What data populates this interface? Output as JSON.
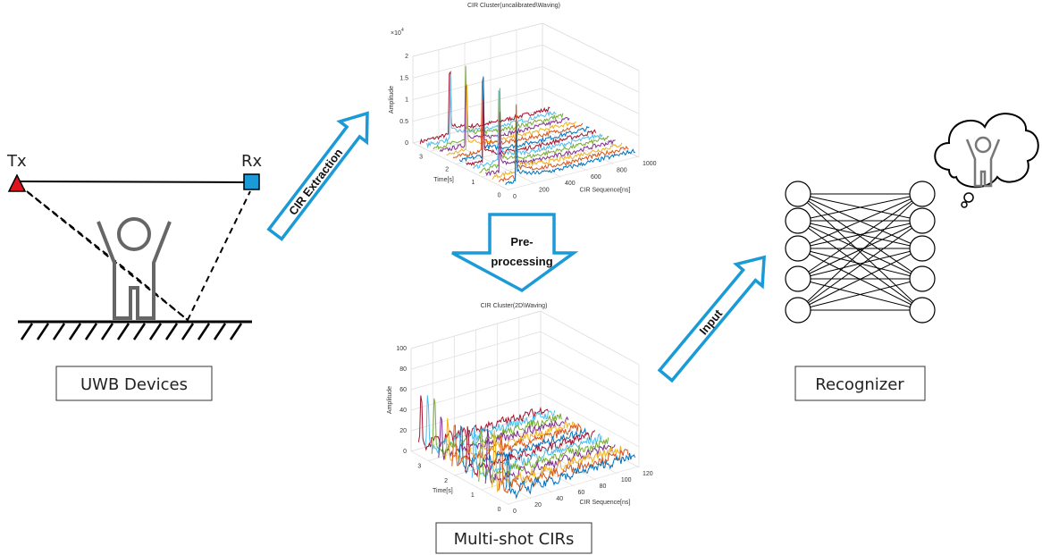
{
  "devices": {
    "tx": "Tx",
    "rx": "Rx",
    "label": "UWB Devices"
  },
  "arrows": {
    "extraction": "CIR Extraction",
    "preprocessing": [
      "Pre-",
      "processing"
    ],
    "input": "Input"
  },
  "plot_raw": {
    "title": "CIR Cluster(uncalibrated\\Waving)",
    "scale": "×10",
    "scale_exp": "4",
    "y_label": "Amplitude",
    "x_label": "CIR Sequence[ns]",
    "t_label": "Time[s]",
    "y_ticks": [
      "0",
      "0.5",
      "1",
      "1.5",
      "2"
    ],
    "x_ticks": [
      "0",
      "200",
      "400",
      "600",
      "800",
      "1000"
    ],
    "t_ticks": [
      "0",
      "1",
      "2",
      "3"
    ]
  },
  "plot_clean": {
    "title": "CIR Cluster(2D\\Waving)",
    "y_label": "Amplitude",
    "x_label": "CIR Sequence[ns]",
    "t_label": "Time[s]",
    "y_ticks": [
      "0",
      "20",
      "40",
      "60",
      "80",
      "100"
    ],
    "x_ticks": [
      "0",
      "20",
      "40",
      "60",
      "80",
      "100",
      "120"
    ],
    "t_ticks": [
      "0",
      "1",
      "2",
      "3"
    ]
  },
  "multi_shot": "Multi-shot CIRs",
  "recognizer": "Recognizer"
}
